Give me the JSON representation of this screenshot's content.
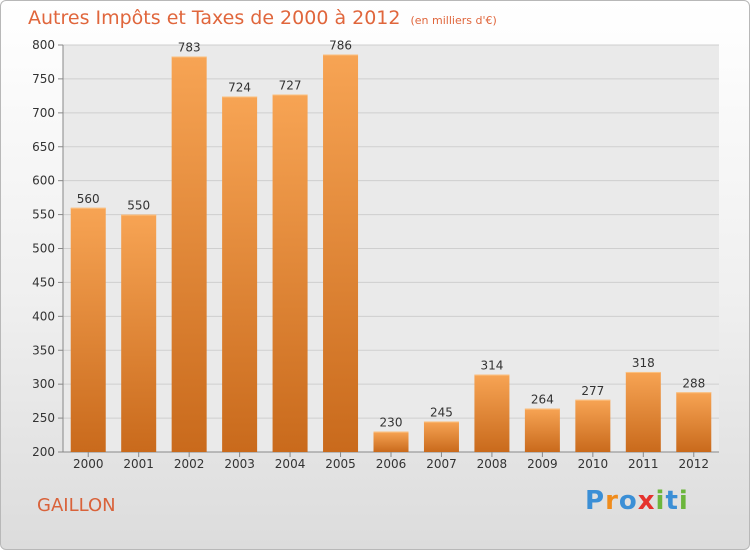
{
  "colors": {
    "bar_light": "#f7a454",
    "bar_dark": "#c96a1c",
    "title": "#e0663c",
    "grid": "#cfcfcf",
    "plot_bg": "#eaeaea",
    "brand_letters": [
      "#3b8fd6",
      "#f08c1c",
      "#3b8fd6",
      "#e5322d",
      "#6cb63c",
      "#3b8fd6",
      "#6cb63c"
    ]
  },
  "chart_data": {
    "type": "bar",
    "title": "Autres Impôts et Taxes de 2000 à 2012",
    "subtitle": "(en milliers d'€)",
    "categories": [
      "2000",
      "2001",
      "2002",
      "2003",
      "2004",
      "2005",
      "2006",
      "2007",
      "2008",
      "2009",
      "2010",
      "2011",
      "2012"
    ],
    "values": [
      560,
      550,
      783,
      724,
      727,
      786,
      230,
      245,
      314,
      264,
      277,
      318,
      288
    ],
    "ylim": [
      200,
      800
    ],
    "yticks": [
      200,
      250,
      300,
      350,
      400,
      450,
      500,
      550,
      600,
      650,
      700,
      750,
      800
    ],
    "grid": true,
    "show_data_labels": true
  },
  "footer": {
    "place": "GAILLON",
    "brand_letters": [
      "P",
      "r",
      "o",
      "x",
      "i",
      "t",
      "i"
    ]
  }
}
